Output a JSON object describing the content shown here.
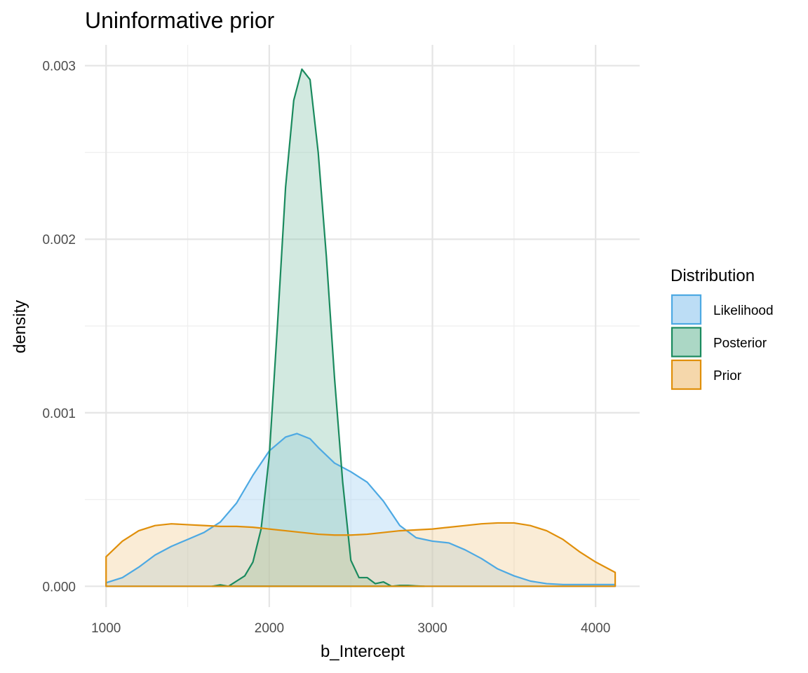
{
  "chart_data": {
    "type": "area",
    "title": "Uninformative prior",
    "xlabel": "b_Intercept",
    "ylabel": "density",
    "xlim": [
      870,
      4270
    ],
    "ylim": [
      -0.00012,
      0.00312
    ],
    "x_ticks": [
      1000,
      2000,
      3000,
      4000
    ],
    "x_tick_labels": [
      "1000",
      "2000",
      "3000",
      "4000"
    ],
    "y_ticks": [
      0,
      0.001,
      0.002,
      0.003
    ],
    "y_tick_labels": [
      "0.000",
      "0.001",
      "0.002",
      "0.003"
    ],
    "grid": true,
    "legend": {
      "title": "Distribution",
      "position": "right"
    },
    "series": [
      {
        "name": "Likelihood",
        "line_color": "#4da9e3",
        "fill_color": "#a6d1f2",
        "fill_opacity": 0.4,
        "x": [
          1000,
          1100,
          1200,
          1300,
          1400,
          1500,
          1600,
          1700,
          1800,
          1900,
          2000,
          2100,
          2170,
          2250,
          2300,
          2400,
          2500,
          2600,
          2700,
          2800,
          2900,
          3000,
          3100,
          3200,
          3300,
          3400,
          3500,
          3600,
          3700,
          3800,
          3900,
          4000,
          4120
        ],
        "y": [
          2e-05,
          5e-05,
          0.00011,
          0.00018,
          0.00023,
          0.00027,
          0.00031,
          0.00037,
          0.00048,
          0.00064,
          0.00078,
          0.00086,
          0.00088,
          0.00085,
          0.0008,
          0.00071,
          0.00066,
          0.0006,
          0.00049,
          0.00035,
          0.00028,
          0.00026,
          0.00025,
          0.00021,
          0.00016,
          0.0001,
          6e-05,
          3e-05,
          1.5e-05,
          1e-05,
          1e-05,
          1e-05,
          1e-05
        ]
      },
      {
        "name": "Posterior",
        "line_color": "#1a8a5e",
        "fill_color": "#8fc9b2",
        "fill_opacity": 0.4,
        "x": [
          1650,
          1700,
          1750,
          1800,
          1850,
          1900,
          1950,
          2000,
          2050,
          2100,
          2150,
          2200,
          2250,
          2300,
          2350,
          2400,
          2450,
          2500,
          2550,
          2600,
          2650,
          2700,
          2750,
          2800,
          2850,
          2900,
          2950
        ],
        "y": [
          0,
          8e-06,
          0,
          3e-05,
          6e-05,
          0.00014,
          0.00033,
          0.00075,
          0.0015,
          0.0023,
          0.0028,
          0.00298,
          0.00292,
          0.0025,
          0.0019,
          0.0012,
          0.0006,
          0.00015,
          5e-05,
          5e-05,
          1.5e-05,
          2.5e-05,
          0,
          5e-06,
          5e-06,
          2e-06,
          0
        ]
      },
      {
        "name": "Prior",
        "line_color": "#e08f0a",
        "fill_color": "#f0c483",
        "fill_opacity": 0.33,
        "x": [
          1000,
          1100,
          1200,
          1300,
          1400,
          1500,
          1600,
          1700,
          1800,
          1900,
          2000,
          2100,
          2200,
          2300,
          2400,
          2500,
          2600,
          2700,
          2800,
          2900,
          3000,
          3100,
          3200,
          3300,
          3400,
          3500,
          3600,
          3700,
          3800,
          3900,
          4000,
          4120
        ],
        "y": [
          0.00017,
          0.00026,
          0.00032,
          0.00035,
          0.00036,
          0.000355,
          0.00035,
          0.000345,
          0.000345,
          0.00034,
          0.00033,
          0.00032,
          0.00031,
          0.0003,
          0.000295,
          0.000295,
          0.0003,
          0.00031,
          0.00032,
          0.000325,
          0.00033,
          0.00034,
          0.00035,
          0.00036,
          0.000365,
          0.000365,
          0.00035,
          0.00032,
          0.00027,
          0.0002,
          0.00014,
          8e-05
        ]
      }
    ]
  }
}
